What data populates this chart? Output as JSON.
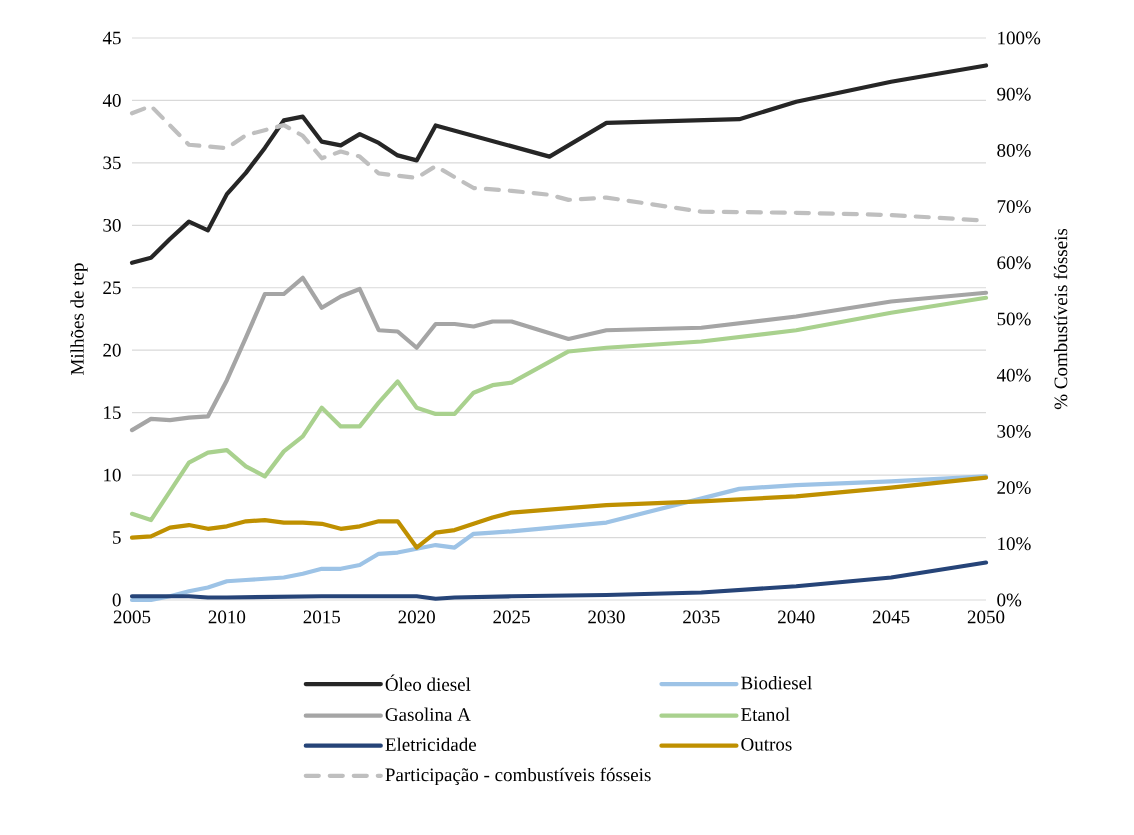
{
  "chart_data": {
    "type": "line",
    "xlabel": null,
    "ylabel": "Milhões de tep",
    "y2label": "% Combustíveis fósseis",
    "xlim": [
      2005,
      2050
    ],
    "xticks": [
      2005,
      2010,
      2015,
      2020,
      2025,
      2030,
      2035,
      2040,
      2045,
      2050
    ],
    "ylim": [
      0,
      45
    ],
    "yticks": [
      0,
      5,
      10,
      15,
      20,
      25,
      30,
      35,
      40,
      45
    ],
    "y2lim": [
      0,
      100
    ],
    "y2ticks": [
      {
        "value": 0,
        "label": "0%"
      },
      {
        "value": 10,
        "label": "10%"
      },
      {
        "value": 20,
        "label": "20%"
      },
      {
        "value": 30,
        "label": "30%"
      },
      {
        "value": 40,
        "label": "40%"
      },
      {
        "value": 50,
        "label": "50%"
      },
      {
        "value": 60,
        "label": "60%"
      },
      {
        "value": 70,
        "label": "70%"
      },
      {
        "value": 80,
        "label": "80%"
      },
      {
        "value": 90,
        "label": "90%"
      },
      {
        "value": 100,
        "label": "100%"
      }
    ],
    "grid": "y",
    "legend": "bottom",
    "marker": "none",
    "series": [
      {
        "name": "Óleo diesel",
        "color": "#262626",
        "line_style": "solid",
        "x": [
          2005,
          2006,
          2007,
          2008,
          2009,
          2010,
          2011,
          2012,
          2013,
          2014,
          2015,
          2016,
          2017,
          2018,
          2019,
          2020,
          2021,
          2027,
          2030,
          2037,
          2040,
          2045,
          2050
        ],
        "values": [
          27.0,
          27.4,
          28.9,
          30.3,
          29.6,
          32.5,
          34.2,
          36.2,
          38.4,
          38.7,
          36.7,
          36.4,
          37.3,
          36.6,
          35.6,
          35.2,
          38.0,
          35.5,
          38.2,
          38.5,
          39.9,
          41.5,
          42.8
        ]
      },
      {
        "name": "Biodiesel",
        "color": "#9dc3e6",
        "line_style": "solid",
        "x": [
          2005,
          2006,
          2007,
          2008,
          2009,
          2010,
          2011,
          2012,
          2013,
          2014,
          2015,
          2016,
          2017,
          2018,
          2019,
          2020,
          2021,
          2022,
          2023,
          2024,
          2025,
          2030,
          2037,
          2040,
          2045,
          2050
        ],
        "values": [
          0.0,
          0.0,
          0.3,
          0.7,
          1.0,
          1.5,
          1.6,
          1.7,
          1.8,
          2.1,
          2.5,
          2.5,
          2.8,
          3.7,
          3.8,
          4.1,
          4.4,
          4.2,
          5.3,
          5.4,
          5.5,
          6.2,
          8.9,
          9.2,
          9.5,
          9.9
        ]
      },
      {
        "name": "Gasolina A",
        "color": "#a5a5a5",
        "line_style": "solid",
        "x": [
          2005,
          2006,
          2007,
          2008,
          2009,
          2010,
          2011,
          2012,
          2013,
          2014,
          2015,
          2016,
          2017,
          2018,
          2019,
          2020,
          2021,
          2022,
          2023,
          2024,
          2025,
          2028,
          2030,
          2035,
          2040,
          2045,
          2050
        ],
        "values": [
          13.6,
          14.5,
          14.4,
          14.6,
          14.7,
          17.6,
          21.0,
          24.5,
          24.5,
          25.8,
          23.4,
          24.3,
          24.9,
          21.6,
          21.5,
          20.2,
          22.1,
          22.1,
          21.9,
          22.3,
          22.3,
          20.9,
          21.6,
          21.8,
          22.7,
          23.9,
          24.6
        ]
      },
      {
        "name": "Etanol",
        "color": "#a9d18e",
        "line_style": "solid",
        "x": [
          2005,
          2006,
          2007,
          2008,
          2009,
          2010,
          2011,
          2012,
          2013,
          2014,
          2015,
          2016,
          2017,
          2018,
          2019,
          2020,
          2021,
          2022,
          2023,
          2024,
          2025,
          2028,
          2030,
          2035,
          2040,
          2045,
          2050
        ],
        "values": [
          6.9,
          6.4,
          8.7,
          11.0,
          11.8,
          12.0,
          10.7,
          9.9,
          11.9,
          13.1,
          15.4,
          13.9,
          13.9,
          15.8,
          17.5,
          15.4,
          14.9,
          14.9,
          16.6,
          17.2,
          17.4,
          19.9,
          20.2,
          20.7,
          21.6,
          23.0,
          24.2
        ]
      },
      {
        "name": "Eletricidade",
        "color": "#264478",
        "line_style": "solid",
        "x": [
          2005,
          2008,
          2009,
          2010,
          2015,
          2020,
          2021,
          2022,
          2025,
          2030,
          2035,
          2040,
          2045,
          2050
        ],
        "values": [
          0.3,
          0.3,
          0.2,
          0.2,
          0.3,
          0.3,
          0.1,
          0.2,
          0.3,
          0.4,
          0.6,
          1.1,
          1.8,
          3.0
        ]
      },
      {
        "name": "Outros",
        "color": "#bf9000",
        "line_style": "solid",
        "x": [
          2005,
          2006,
          2007,
          2008,
          2009,
          2010,
          2011,
          2012,
          2013,
          2014,
          2015,
          2016,
          2017,
          2018,
          2019,
          2020,
          2021,
          2022,
          2023,
          2024,
          2025,
          2030,
          2035,
          2040,
          2045,
          2050
        ],
        "values": [
          5.0,
          5.1,
          5.8,
          6.0,
          5.7,
          5.9,
          6.3,
          6.4,
          6.2,
          6.2,
          6.1,
          5.7,
          5.9,
          6.3,
          6.3,
          4.2,
          5.4,
          5.6,
          6.1,
          6.6,
          7.0,
          7.6,
          7.9,
          8.3,
          9.0,
          9.8
        ]
      },
      {
        "name": "Participação - combustíveis fósseis",
        "color": "#bfbfbf",
        "line_style": "dashed",
        "axis": "y2",
        "x": [
          2005,
          2006,
          2008,
          2010,
          2011,
          2013,
          2014,
          2015,
          2016,
          2017,
          2018,
          2020,
          2021,
          2023,
          2025,
          2027,
          2028,
          2030,
          2035,
          2040,
          2045,
          2050
        ],
        "values": [
          86.6,
          87.9,
          81.0,
          80.4,
          82.7,
          84.5,
          82.6,
          78.6,
          79.8,
          78.9,
          75.9,
          75.1,
          77.2,
          73.3,
          72.8,
          72.1,
          71.2,
          71.6,
          69.1,
          68.9,
          68.5,
          67.5
        ]
      }
    ]
  }
}
